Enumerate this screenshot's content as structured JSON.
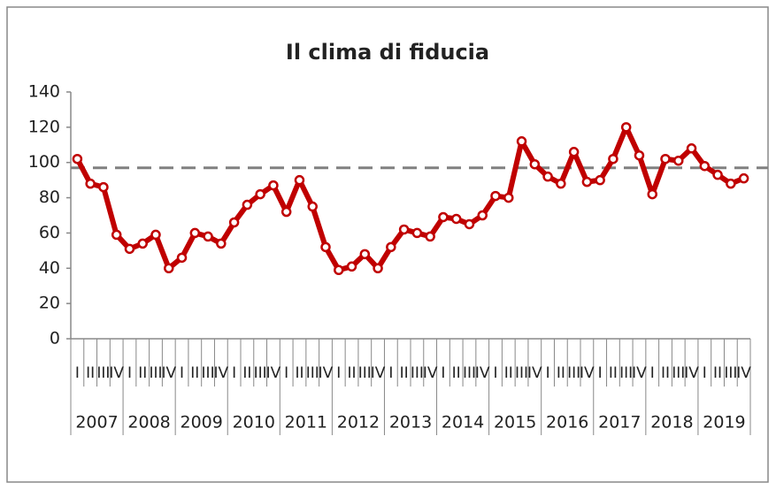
{
  "chart_data": {
    "type": "line",
    "title": "Il clima di fiducia",
    "categories": [
      "I",
      "II",
      "III",
      "IV",
      "I",
      "II",
      "III",
      "IV",
      "I",
      "II",
      "III",
      "IV",
      "I",
      "II",
      "III",
      "IV",
      "I",
      "II",
      "III",
      "IV",
      "I",
      "II",
      "III",
      "IV",
      "I",
      "II",
      "III",
      "IV",
      "I",
      "II",
      "III",
      "IV",
      "I",
      "II",
      "III",
      "IV",
      "I",
      "II",
      "III",
      "IV",
      "I",
      "II",
      "III",
      "IV",
      "I",
      "II",
      "III",
      "IV",
      "I",
      "II",
      "III",
      "IV"
    ],
    "year_groups": [
      "2007",
      "2008",
      "2009",
      "2010",
      "2011",
      "2012",
      "2013",
      "2014",
      "2015",
      "2016",
      "2017",
      "2018",
      "2019"
    ],
    "series": [
      {
        "color": "#c00000",
        "values": [
          102,
          88,
          86,
          59,
          51,
          54,
          59,
          40,
          46,
          60,
          58,
          54,
          66,
          76,
          82,
          87,
          72,
          90,
          75,
          52,
          39,
          41,
          48,
          40,
          52,
          62,
          60,
          58,
          69,
          68,
          65,
          70,
          81,
          80,
          112,
          99,
          92,
          88,
          106,
          89,
          90,
          102,
          120,
          104,
          82,
          102,
          101,
          108,
          98,
          93,
          88,
          91
        ]
      }
    ],
    "reference_line": {
      "value": 97,
      "color": "#808080"
    },
    "ylim": [
      0,
      140
    ],
    "yticks": [
      0,
      20,
      40,
      60,
      80,
      100,
      120,
      140
    ]
  }
}
